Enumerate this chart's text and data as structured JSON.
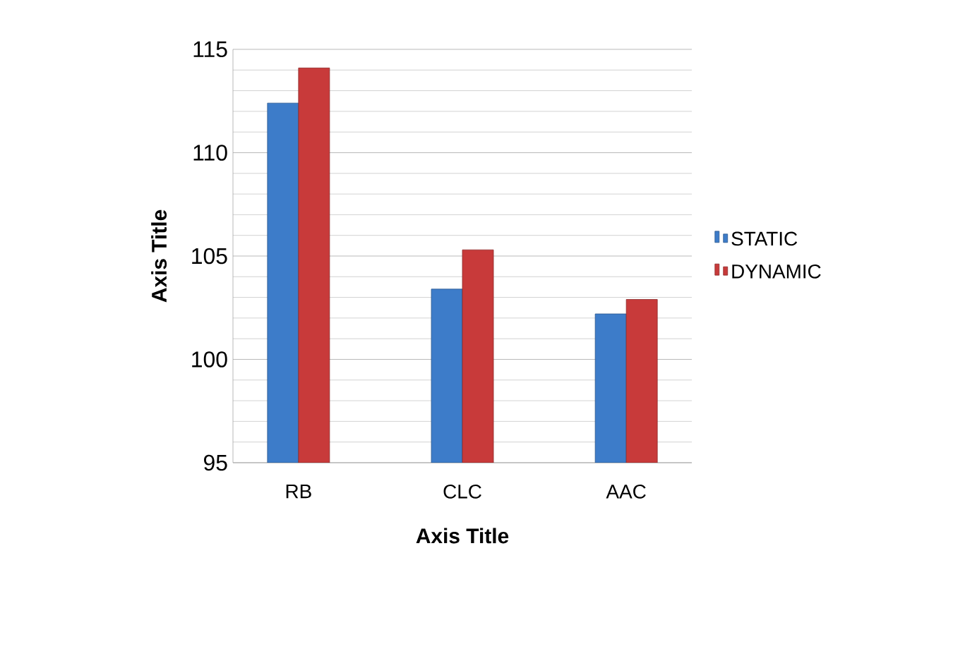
{
  "chart_data": {
    "type": "bar",
    "xlabel": "Axis Title",
    "ylabel": "Axis Title",
    "categories": [
      "RB",
      "CLC",
      "AAC"
    ],
    "series": [
      {
        "name": "STATIC",
        "color": "#3d7cc9",
        "values": [
          112.4,
          103.4,
          102.2
        ]
      },
      {
        "name": "DYNAMIC",
        "color": "#c83a3a",
        "values": [
          114.1,
          105.3,
          102.9
        ]
      }
    ],
    "ylim": [
      95,
      115
    ],
    "yticks": [
      95,
      100,
      105,
      110,
      115
    ],
    "grid": "y",
    "legend": "right"
  }
}
